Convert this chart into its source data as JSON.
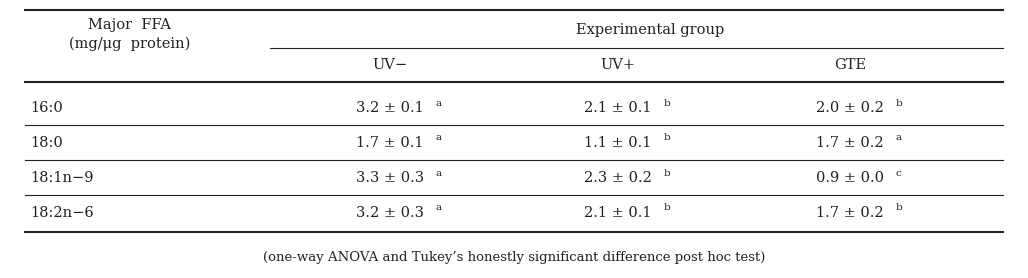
{
  "header_col_line1": "Major  FFA",
  "header_col_line2": "(mg/μg  protein)",
  "header_group": "Experimental group",
  "subheaders": [
    "UV−",
    "UV+",
    "GTE"
  ],
  "rows": [
    {
      "label": "16:0",
      "uv_minus": "3.2 ± 0.1",
      "uv_minus_sup": "a",
      "uv_plus": "2.1 ± 0.1",
      "uv_plus_sup": "b",
      "gte": "2.0 ± 0.2",
      "gte_sup": "b"
    },
    {
      "label": "18:0",
      "uv_minus": "1.7 ± 0.1",
      "uv_minus_sup": "a",
      "uv_plus": "1.1 ± 0.1",
      "uv_plus_sup": "b",
      "gte": "1.7 ± 0.2",
      "gte_sup": "a"
    },
    {
      "label": "18:1n−9",
      "uv_minus": "3.3 ± 0.3",
      "uv_minus_sup": "a",
      "uv_plus": "2.3 ± 0.2",
      "uv_plus_sup": "b",
      "gte": "0.9 ± 0.0",
      "gte_sup": "c"
    },
    {
      "label": "18:2n−6",
      "uv_minus": "3.2 ± 0.3",
      "uv_minus_sup": "a",
      "uv_plus": "2.1 ± 0.1",
      "uv_plus_sup": "b",
      "gte": "1.7 ± 0.2",
      "gte_sup": "b"
    }
  ],
  "footnote": "(one-way ANOVA and Tukey’s honestly significant difference post hoc test)",
  "bg_color": "#ffffff",
  "text_color": "#222222",
  "font_size": 10.5,
  "sup_font_size": 7.5,
  "footnote_font_size": 9.5
}
